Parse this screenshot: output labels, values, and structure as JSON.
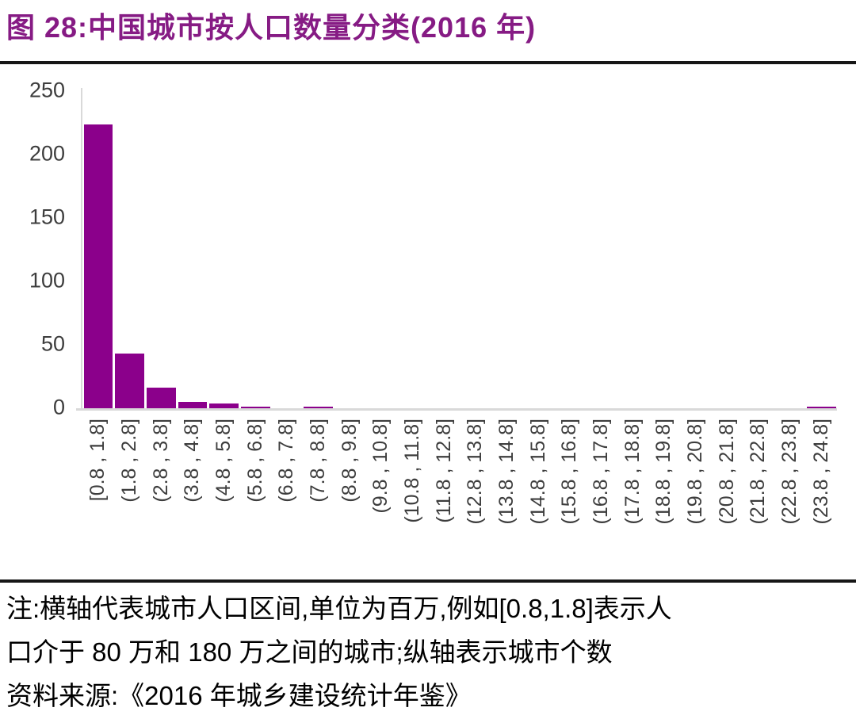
{
  "title": "图 28:中国城市按人口数量分类(2016 年)",
  "colors": {
    "title": "#861B84",
    "bar": "#8B008B",
    "axis_line": "#D9D9D9",
    "tick_label": "#3D3D3D",
    "divider": "#161616"
  },
  "chart_data": {
    "type": "bar",
    "title": "",
    "xlabel": "",
    "ylabel": "",
    "ylim": [
      0,
      250
    ],
    "yticks": [
      250,
      200,
      150,
      100,
      50,
      0
    ],
    "grid": false,
    "legend": false,
    "categories": [
      "[0.8 , 1.8]",
      "(1.8 , 2.8]",
      "(2.8 , 3.8]",
      "(3.8 , 4.8]",
      "(4.8 , 5.8]",
      "(5.8 , 6.8]",
      "(6.8 , 7.8]",
      "(7.8 , 8.8]",
      "(8.8 , 9.8]",
      "(9.8 , 10.8]",
      "(10.8 , 11.8]",
      "(11.8 , 12.8]",
      "(12.8 , 13.8]",
      "(13.8 , 14.8]",
      "(14.8 , 15.8]",
      "(15.8 , 16.8]",
      "(16.8 , 17.8]",
      "(17.8 , 18.8]",
      "(18.8 , 19.8]",
      "(19.8 , 20.8]",
      "(20.8 , 21.8]",
      "(21.8 , 22.8]",
      "(22.8 , 23.8]",
      "(23.8 , 24.8]"
    ],
    "values": [
      224,
      43,
      16,
      5,
      4,
      1,
      0,
      1,
      0,
      0,
      0,
      0,
      0,
      0,
      0,
      0,
      0,
      0,
      0,
      0,
      0,
      0,
      0,
      1
    ]
  },
  "notes": {
    "line1": "注:横轴代表城市人口区间,单位为百万,例如[0.8,1.8]表示人",
    "line2": "口介于 80 万和 180 万之间的城市;纵轴表示城市个数",
    "source": "资料来源:《2016 年城乡建设统计年鉴》"
  }
}
